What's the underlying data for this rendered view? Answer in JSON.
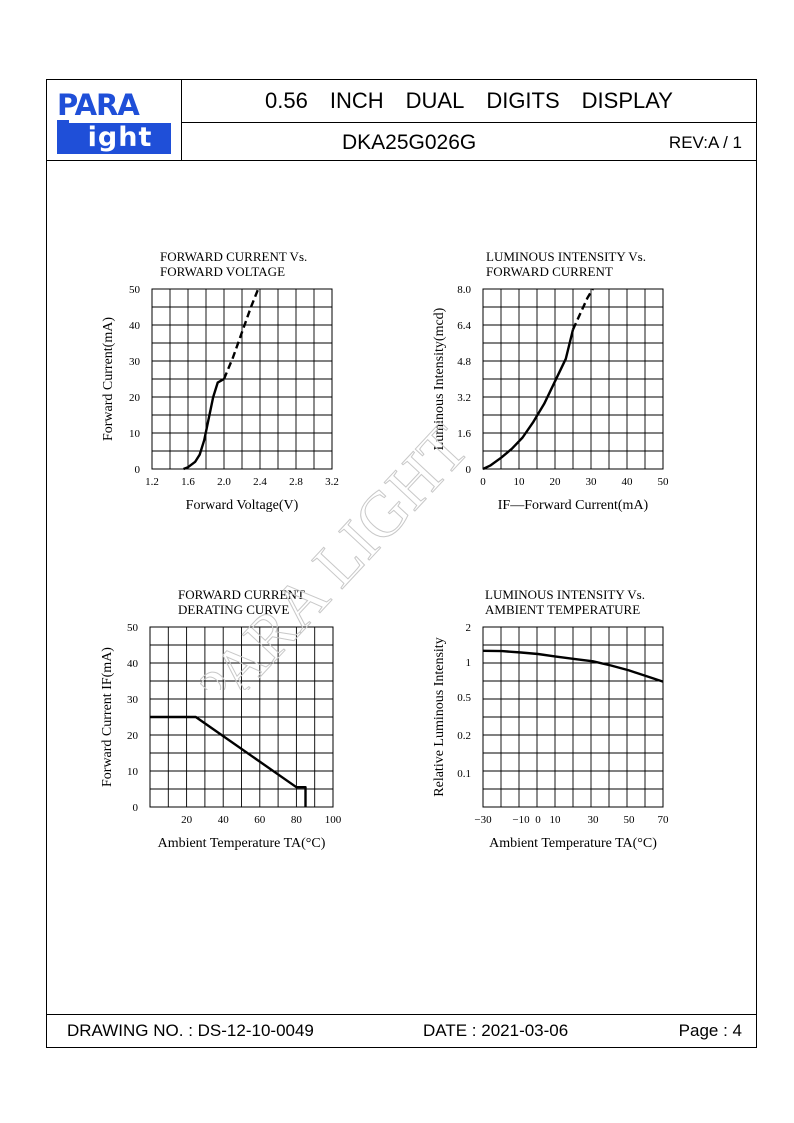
{
  "header": {
    "logo_top": "PARA",
    "logo_bottom": "ight",
    "title_words": [
      "0.56",
      "INCH",
      "DUAL",
      "DIGITS",
      "DISPLAY"
    ],
    "model": "DKA25G026G",
    "rev": "REV:A / 1"
  },
  "watermark": "PARA LIGHT",
  "footer": {
    "drawing_no": "DRAWING NO. : DS-12-10-0049",
    "date": "DATE : 2021-03-06",
    "page": "Page : 4"
  },
  "chart_data": [
    {
      "type": "line",
      "title": [
        "FORWARD CURRENT Vs.",
        "FORWARD VOLTAGE"
      ],
      "xlabel": "Forward Voltage(V)",
      "ylabel": "Forward Current(mA)",
      "xlim": [
        1.2,
        3.2
      ],
      "ylim": [
        0,
        50
      ],
      "xticks": [
        "1.2",
        "1.6",
        "2.0",
        "2.4",
        "2.8",
        "3.2"
      ],
      "yticks": [
        "0",
        "10",
        "20",
        "30",
        "40",
        "50"
      ],
      "grid": true,
      "series": [
        {
          "style": "solid",
          "x": [
            1.55,
            1.6,
            1.68,
            1.73,
            1.78,
            1.83,
            1.88,
            1.93,
            2.0
          ],
          "y": [
            0,
            0.5,
            2,
            4,
            8,
            14,
            20,
            24,
            25
          ]
        },
        {
          "style": "dashed",
          "x": [
            2.0,
            2.1,
            2.2,
            2.3,
            2.38
          ],
          "y": [
            25,
            31,
            38,
            45,
            50
          ]
        }
      ]
    },
    {
      "type": "line",
      "title": [
        "LUMINOUS INTENSITY Vs.",
        "FORWARD CURRENT"
      ],
      "xlabel": "IF—Forward Current(mA)",
      "ylabel": "Luminous Intensity(mcd)",
      "xlim": [
        0,
        50
      ],
      "ylim": [
        0,
        8.0
      ],
      "xticks": [
        "0",
        "10",
        "20",
        "30",
        "40",
        "50"
      ],
      "yticks": [
        "0",
        "1.6",
        "3.2",
        "4.8",
        "6.4",
        "8.0"
      ],
      "grid": true,
      "series": [
        {
          "style": "solid",
          "x": [
            0,
            2,
            5,
            8,
            11,
            14,
            17,
            20,
            23,
            25
          ],
          "y": [
            0,
            0.15,
            0.5,
            0.9,
            1.4,
            2.1,
            2.9,
            3.9,
            4.9,
            6.2
          ]
        },
        {
          "style": "dashed",
          "x": [
            25,
            27,
            29,
            30.5
          ],
          "y": [
            6.2,
            6.9,
            7.6,
            8.0
          ]
        }
      ]
    },
    {
      "type": "line",
      "title": [
        "FORWARD CURRENT",
        "DERATING CURVE"
      ],
      "xlabel": "Ambient Temperature TA(°C)",
      "ylabel": "Forward Current IF(mA)",
      "xlim": [
        0,
        100
      ],
      "ylim": [
        0,
        50
      ],
      "xticks": [
        "20",
        "40",
        "60",
        "80",
        "100"
      ],
      "yticks": [
        "0",
        "10",
        "20",
        "30",
        "40",
        "50"
      ],
      "grid": true,
      "series": [
        {
          "style": "solid",
          "x": [
            0,
            25,
            80,
            85,
            85
          ],
          "y": [
            25,
            25,
            5.5,
            5.5,
            0
          ]
        }
      ]
    },
    {
      "type": "line",
      "title": [
        "LUMINOUS INTENSITY Vs.",
        "AMBIENT TEMPERATURE"
      ],
      "xlabel": "Ambient Temperature TA(°C)",
      "ylabel": "Relative Luminous Intensity",
      "xlim": [
        -30,
        70
      ],
      "ylim": [
        0,
        2
      ],
      "xticks": [
        "−30",
        "−10",
        "0",
        "10",
        "30",
        "50",
        "70"
      ],
      "yticks": [
        "0.1",
        "0.2",
        "0.5",
        "1",
        "2"
      ],
      "grid": true,
      "series": [
        {
          "style": "solid",
          "x": [
            -30,
            -20,
            -10,
            0,
            10,
            20,
            30,
            40,
            50,
            60,
            70
          ],
          "y": [
            1.32,
            1.31,
            1.27,
            1.23,
            1.16,
            1.09,
            1.02,
            0.95,
            0.88,
            0.8,
            0.72
          ]
        }
      ]
    }
  ]
}
